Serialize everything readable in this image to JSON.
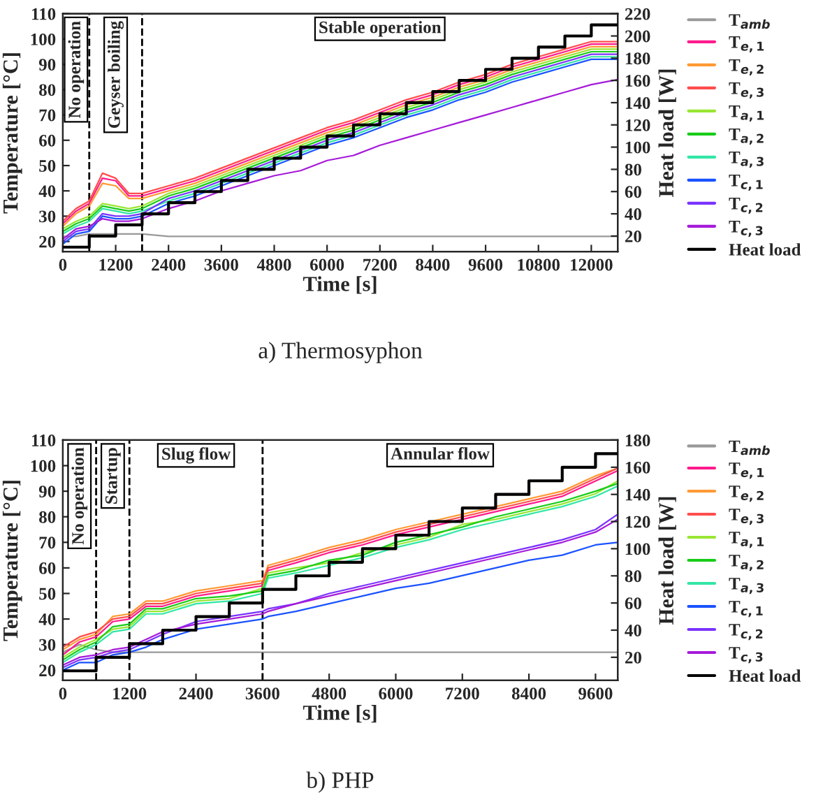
{
  "chart_data": [
    {
      "type": "line",
      "title": "a) Thermosyphon",
      "xlabel": "Time [s]",
      "ylabel": "Temperature [°C]",
      "y2label": "Heat load [W]",
      "x": [
        0,
        300,
        600,
        900,
        1200,
        1500,
        1800,
        2400,
        3000,
        3600,
        4200,
        4800,
        5400,
        6000,
        6600,
        7200,
        7800,
        8400,
        9000,
        9600,
        10200,
        10800,
        11400,
        12000,
        12600
      ],
      "xlim": [
        0,
        12600
      ],
      "xticks": [
        0,
        1200,
        2400,
        3600,
        4800,
        6000,
        7200,
        8400,
        9600,
        10800,
        12000
      ],
      "ylim": [
        16,
        110
      ],
      "yticks": [
        20,
        30,
        40,
        50,
        60,
        70,
        80,
        90,
        100,
        110
      ],
      "y2lim": [
        6,
        220
      ],
      "y2ticks": [
        20,
        40,
        60,
        80,
        100,
        120,
        140,
        160,
        180,
        200,
        220
      ],
      "grid": false,
      "legend": "right",
      "line_style": "solid",
      "ref_lines": [
        {
          "axis": "x",
          "value": 600,
          "line_style": "dashed",
          "color": "#000000"
        },
        {
          "axis": "x",
          "value": 1800,
          "line_style": "dashed",
          "color": "#000000"
        }
      ],
      "annotations": [
        "No operation",
        "Geyser boiling",
        "Stable operation"
      ],
      "series": [
        {
          "name": "T$_{amb}$",
          "color": "#999999",
          "values": [
            22,
            22,
            23,
            23,
            23,
            23,
            23,
            22,
            22,
            22,
            22,
            22,
            22,
            22,
            22,
            22,
            22,
            22,
            22,
            22,
            22,
            22,
            22,
            22,
            22
          ]
        },
        {
          "name": "T$_{e,1}$",
          "color": "#ff1a8c",
          "values": [
            27,
            32,
            35,
            45,
            44,
            38,
            38,
            41,
            44,
            48,
            52,
            56,
            60,
            64,
            67,
            71,
            75,
            78,
            82,
            85,
            89,
            92,
            95,
            98,
            98
          ]
        },
        {
          "name": "T$_{e,2}$",
          "color": "#ff9933",
          "values": [
            26,
            31,
            34,
            43,
            42,
            37,
            37,
            40,
            43,
            47,
            51,
            55,
            59,
            63,
            66,
            70,
            74,
            77,
            81,
            84,
            88,
            91,
            94,
            97,
            97
          ]
        },
        {
          "name": "T$_{e,3}$",
          "color": "#ff4d4d",
          "values": [
            28,
            33,
            36,
            47,
            45,
            39,
            39,
            42,
            45,
            49,
            53,
            57,
            61,
            65,
            68,
            72,
            76,
            79,
            83,
            86,
            90,
            93,
            96,
            99,
            99
          ]
        },
        {
          "name": "T$_{a,1}$",
          "color": "#99e633",
          "values": [
            25,
            28,
            30,
            35,
            34,
            33,
            34,
            39,
            42,
            46,
            50,
            54,
            58,
            62,
            65,
            69,
            73,
            76,
            80,
            83,
            87,
            90,
            93,
            96,
            96
          ]
        },
        {
          "name": "T$_{a,2}$",
          "color": "#19cc19",
          "values": [
            24,
            27,
            29,
            34,
            33,
            32,
            33,
            38,
            41,
            45,
            49,
            53,
            57,
            61,
            64,
            68,
            72,
            75,
            79,
            82,
            86,
            89,
            92,
            95,
            95
          ]
        },
        {
          "name": "T$_{a,3}$",
          "color": "#33e6a6",
          "values": [
            23,
            26,
            28,
            33,
            32,
            31,
            32,
            36,
            39,
            43,
            47,
            51,
            55,
            59,
            62,
            66,
            70,
            73,
            77,
            80,
            84,
            87,
            90,
            93,
            93
          ]
        },
        {
          "name": "T$_{c,1}$",
          "color": "#1a53ff",
          "values": [
            19,
            23,
            24,
            30,
            29,
            29,
            30,
            35,
            38,
            42,
            46,
            50,
            54,
            58,
            61,
            65,
            69,
            72,
            76,
            79,
            83,
            86,
            89,
            92,
            92
          ]
        },
        {
          "name": "T$_{c,2}$",
          "color": "#7a33ff",
          "values": [
            20,
            24,
            25,
            31,
            30,
            30,
            31,
            37,
            40,
            44,
            48,
            52,
            56,
            60,
            63,
            67,
            71,
            74,
            78,
            81,
            85,
            88,
            91,
            94,
            94
          ]
        },
        {
          "name": "T$_{c,3}$",
          "color": "#a61ad9",
          "values": [
            21,
            25,
            26,
            29,
            28,
            28,
            29,
            33,
            36,
            40,
            43,
            46,
            48,
            52,
            54,
            58,
            61,
            64,
            67,
            70,
            73,
            76,
            79,
            82,
            84
          ]
        },
        {
          "name": "Heat load",
          "color": "#000000",
          "type": "step",
          "axis": "y2",
          "x": [
            0,
            600,
            1200,
            1800,
            2400,
            3000,
            3600,
            4200,
            4800,
            5400,
            6000,
            6600,
            7200,
            7800,
            8400,
            9000,
            9600,
            10200,
            10800,
            11400,
            12000,
            12600
          ],
          "values": [
            10,
            20,
            30,
            40,
            50,
            60,
            70,
            80,
            90,
            100,
            110,
            120,
            130,
            140,
            150,
            160,
            170,
            180,
            190,
            200,
            210,
            210
          ]
        }
      ]
    },
    {
      "type": "line",
      "title": "b) PHP",
      "xlabel": "Time [s]",
      "ylabel": "Temperature [°C]",
      "y2label": "Heat load [W]",
      "x": [
        0,
        300,
        600,
        900,
        1200,
        1500,
        1800,
        2400,
        3000,
        3600,
        3700,
        4200,
        4800,
        5400,
        6000,
        6600,
        7200,
        7800,
        8400,
        9000,
        9600,
        10000
      ],
      "xlim": [
        0,
        10000
      ],
      "xticks": [
        0,
        1200,
        2400,
        3600,
        4800,
        6000,
        7200,
        8400,
        9600
      ],
      "ylim": [
        16,
        110
      ],
      "yticks": [
        20,
        30,
        40,
        50,
        60,
        70,
        80,
        90,
        100,
        110
      ],
      "y2lim": [
        3,
        180
      ],
      "y2ticks": [
        20,
        40,
        60,
        80,
        100,
        120,
        140,
        160,
        180
      ],
      "grid": false,
      "legend": "right",
      "line_style": "solid",
      "ref_lines": [
        {
          "axis": "x",
          "value": 600,
          "line_style": "dashed",
          "color": "#000000"
        },
        {
          "axis": "x",
          "value": 1200,
          "line_style": "dashed",
          "color": "#000000"
        },
        {
          "axis": "x",
          "value": 3600,
          "line_style": "dashed",
          "color": "#000000"
        }
      ],
      "annotations": [
        "No operation",
        "Startup",
        "Slug flow",
        "Annular flow"
      ],
      "series": [
        {
          "name": "T$_{amb}$",
          "color": "#999999",
          "values": [
            27,
            30,
            28,
            27,
            27,
            27,
            27,
            27,
            27,
            27,
            27,
            27,
            27,
            27,
            27,
            27,
            27,
            27,
            27,
            27,
            27,
            27
          ]
        },
        {
          "name": "T$_{e,1}$",
          "color": "#ff1a8c",
          "values": [
            26,
            31,
            33,
            39,
            40,
            45,
            45,
            49,
            51,
            53,
            59,
            62,
            66,
            69,
            73,
            76,
            79,
            82,
            85,
            88,
            94,
            98
          ]
        },
        {
          "name": "T$_{e,2}$",
          "color": "#ff9933",
          "values": [
            28,
            32,
            34,
            41,
            42,
            47,
            47,
            51,
            53,
            55,
            61,
            64,
            68,
            71,
            75,
            78,
            81,
            84,
            87,
            90,
            96,
            99
          ]
        },
        {
          "name": "T$_{e,3}$",
          "color": "#ff4d4d",
          "values": [
            29,
            33,
            35,
            40,
            41,
            46,
            46,
            50,
            52,
            54,
            60,
            63,
            67,
            70,
            74,
            77,
            80,
            83,
            86,
            89,
            95,
            99
          ]
        },
        {
          "name": "T$_{a,1}$",
          "color": "#99e633",
          "values": [
            25,
            29,
            32,
            36,
            37,
            43,
            43,
            47,
            48,
            52,
            58,
            60,
            62,
            66,
            69,
            72,
            77,
            79,
            82,
            85,
            89,
            94
          ]
        },
        {
          "name": "T$_{a,2}$",
          "color": "#19cc19",
          "values": [
            24,
            28,
            31,
            37,
            38,
            44,
            44,
            48,
            49,
            51,
            57,
            59,
            63,
            65,
            70,
            73,
            76,
            80,
            83,
            86,
            90,
            93
          ]
        },
        {
          "name": "T$_{a,3}$",
          "color": "#33e6a6",
          "values": [
            23,
            27,
            30,
            35,
            36,
            42,
            42,
            46,
            47,
            50,
            56,
            58,
            61,
            64,
            68,
            71,
            75,
            78,
            81,
            84,
            88,
            92
          ]
        },
        {
          "name": "T$_{c,1}$",
          "color": "#1a53ff",
          "values": [
            20,
            23,
            23,
            26,
            27,
            29,
            32,
            36,
            38,
            40,
            41,
            43,
            46,
            49,
            52,
            54,
            57,
            60,
            63,
            65,
            69,
            70
          ]
        },
        {
          "name": "T$_{c,2}$",
          "color": "#7a33ff",
          "values": [
            21,
            24,
            25,
            27,
            28,
            31,
            34,
            39,
            41,
            43,
            44,
            46,
            50,
            53,
            56,
            59,
            62,
            65,
            68,
            71,
            75,
            81
          ]
        },
        {
          "name": "T$_{c,3}$",
          "color": "#a61ad9",
          "values": [
            22,
            25,
            26,
            28,
            29,
            32,
            35,
            38,
            40,
            42,
            43,
            46,
            49,
            52,
            55,
            58,
            61,
            64,
            67,
            70,
            74,
            79
          ]
        },
        {
          "name": "Heat load",
          "color": "#000000",
          "type": "step",
          "axis": "y2",
          "x": [
            0,
            600,
            1200,
            1800,
            2400,
            3000,
            3600,
            4200,
            4800,
            5400,
            6000,
            6600,
            7200,
            7800,
            8400,
            9000,
            9600,
            10000
          ],
          "values": [
            10,
            20,
            30,
            40,
            50,
            60,
            70,
            80,
            90,
            100,
            110,
            120,
            130,
            140,
            150,
            160,
            170,
            170
          ]
        }
      ]
    }
  ]
}
